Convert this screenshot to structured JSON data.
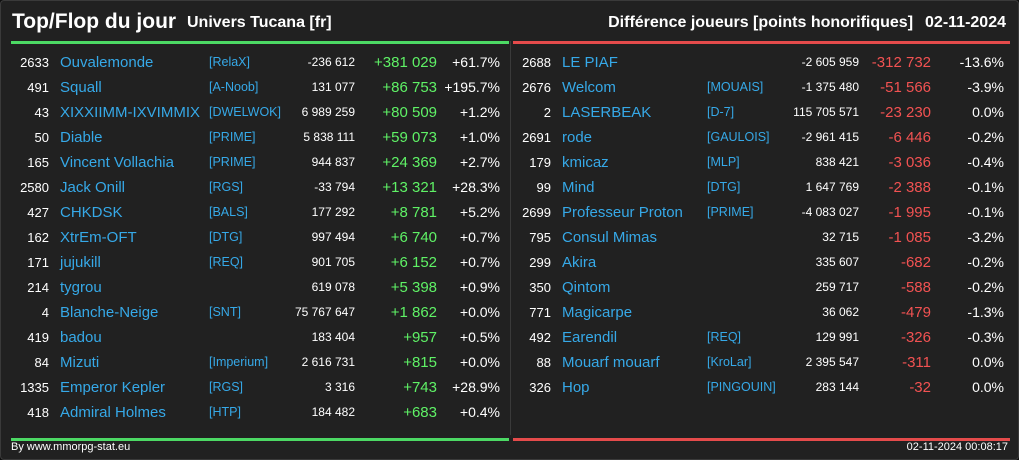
{
  "header": {
    "title": "Top/Flop du jour",
    "universe": "Univers Tucana [fr]",
    "metric": "Différence joueurs [points honorifiques]",
    "date": "02-11-2024"
  },
  "colors": {
    "top": "#5ff266",
    "flop": "#f25252",
    "link": "#36a9e8"
  },
  "top": [
    {
      "rank": "2633",
      "name": "Ouvalemonde",
      "tag": "[RelaX]",
      "total": "-236 612",
      "diff": "+381 029",
      "pct": "+61.7%"
    },
    {
      "rank": "491",
      "name": "Squall",
      "tag": "[A-Noob]",
      "total": "131 077",
      "diff": "+86 753",
      "pct": "+195.7%"
    },
    {
      "rank": "43",
      "name": "XIXXIIMM-IXVIMMIX",
      "tag": "[DWELWOK]",
      "total": "6 989 259",
      "diff": "+80 509",
      "pct": "+1.2%"
    },
    {
      "rank": "50",
      "name": "Diable",
      "tag": "[PRIME]",
      "total": "5 838 111",
      "diff": "+59 073",
      "pct": "+1.0%"
    },
    {
      "rank": "165",
      "name": "Vincent Vollachia",
      "tag": "[PRIME]",
      "total": "944 837",
      "diff": "+24 369",
      "pct": "+2.7%"
    },
    {
      "rank": "2580",
      "name": "Jack Onill",
      "tag": "[RGS]",
      "total": "-33 794",
      "diff": "+13 321",
      "pct": "+28.3%"
    },
    {
      "rank": "427",
      "name": "CHKDSK",
      "tag": "[BALS]",
      "total": "177 292",
      "diff": "+8 781",
      "pct": "+5.2%"
    },
    {
      "rank": "162",
      "name": "XtrEm-OFT",
      "tag": "[DTG]",
      "total": "997 494",
      "diff": "+6 740",
      "pct": "+0.7%"
    },
    {
      "rank": "171",
      "name": "jujukill",
      "tag": "[REQ]",
      "total": "901 705",
      "diff": "+6 152",
      "pct": "+0.7%"
    },
    {
      "rank": "214",
      "name": "tygrou",
      "tag": "",
      "total": "619 078",
      "diff": "+5 398",
      "pct": "+0.9%"
    },
    {
      "rank": "4",
      "name": "Blanche-Neige",
      "tag": "[SNT]",
      "total": "75 767 647",
      "diff": "+1 862",
      "pct": "+0.0%"
    },
    {
      "rank": "419",
      "name": "badou",
      "tag": "",
      "total": "183 404",
      "diff": "+957",
      "pct": "+0.5%"
    },
    {
      "rank": "84",
      "name": "Mizuti",
      "tag": "[Imperium]",
      "total": "2 616 731",
      "diff": "+815",
      "pct": "+0.0%"
    },
    {
      "rank": "1335",
      "name": "Emperor Kepler",
      "tag": "[RGS]",
      "total": "3 316",
      "diff": "+743",
      "pct": "+28.9%"
    },
    {
      "rank": "418",
      "name": "Admiral Holmes",
      "tag": "[HTP]",
      "total": "184 482",
      "diff": "+683",
      "pct": "+0.4%"
    }
  ],
  "flop": [
    {
      "rank": "2688",
      "name": "LE PIAF",
      "tag": "",
      "total": "-2 605 959",
      "diff": "-312 732",
      "pct": "-13.6%"
    },
    {
      "rank": "2676",
      "name": "Welcom",
      "tag": "[MOUAIS]",
      "total": "-1 375 480",
      "diff": "-51 566",
      "pct": "-3.9%"
    },
    {
      "rank": "2",
      "name": "LASERBEAK",
      "tag": "[D-7]",
      "total": "115 705 571",
      "diff": "-23 230",
      "pct": "0.0%"
    },
    {
      "rank": "2691",
      "name": "rode",
      "tag": "[GAULOIS]",
      "total": "-2 961 415",
      "diff": "-6 446",
      "pct": "-0.2%"
    },
    {
      "rank": "179",
      "name": "kmicaz",
      "tag": "[MLP]",
      "total": "838 421",
      "diff": "-3 036",
      "pct": "-0.4%"
    },
    {
      "rank": "99",
      "name": "Mind",
      "tag": "[DTG]",
      "total": "1 647 769",
      "diff": "-2 388",
      "pct": "-0.1%"
    },
    {
      "rank": "2699",
      "name": "Professeur Proton",
      "tag": "[PRIME]",
      "total": "-4 083 027",
      "diff": "-1 995",
      "pct": "-0.1%"
    },
    {
      "rank": "795",
      "name": "Consul Mimas",
      "tag": "",
      "total": "32 715",
      "diff": "-1 085",
      "pct": "-3.2%"
    },
    {
      "rank": "299",
      "name": "Akira",
      "tag": "",
      "total": "335 607",
      "diff": "-682",
      "pct": "-0.2%"
    },
    {
      "rank": "350",
      "name": "Qintom",
      "tag": "",
      "total": "259 717",
      "diff": "-588",
      "pct": "-0.2%"
    },
    {
      "rank": "771",
      "name": "Magicarpe",
      "tag": "",
      "total": "36 062",
      "diff": "-479",
      "pct": "-1.3%"
    },
    {
      "rank": "492",
      "name": "Earendil",
      "tag": "[REQ]",
      "total": "129 991",
      "diff": "-326",
      "pct": "-0.3%"
    },
    {
      "rank": "88",
      "name": "Mouarf mouarf",
      "tag": "[KroLar]",
      "total": "2 395 547",
      "diff": "-311",
      "pct": "0.0%"
    },
    {
      "rank": "326",
      "name": "Hop",
      "tag": "[PINGOUIN]",
      "total": "283 144",
      "diff": "-32",
      "pct": "0.0%"
    }
  ],
  "footer": {
    "credit": "By www.mmorpg-stat.eu",
    "timestamp": "02-11-2024 00:08:17"
  }
}
